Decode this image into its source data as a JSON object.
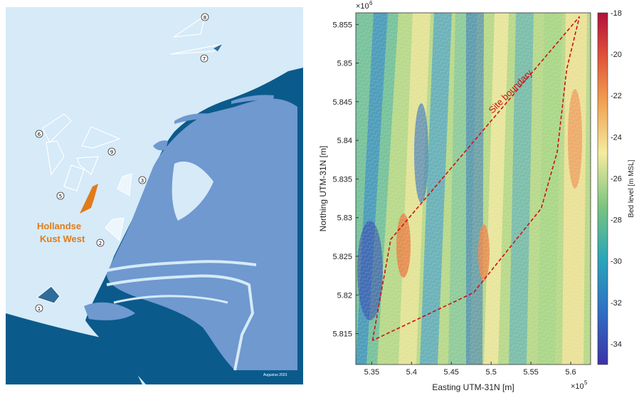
{
  "map": {
    "highlight_label_line1": "Hollandse",
    "highlight_label_line2": "Kust West",
    "date_label": "Augustus 2023",
    "wind_areas": [
      {
        "id": "1",
        "label": "1"
      },
      {
        "id": "2",
        "label": "2"
      },
      {
        "id": "3",
        "label": "3"
      },
      {
        "id": "5",
        "label": "5"
      },
      {
        "id": "6",
        "label": "6"
      },
      {
        "id": "7",
        "label": "7"
      },
      {
        "id": "8",
        "label": "8"
      },
      {
        "id": "9",
        "label": "9"
      }
    ],
    "colors": {
      "sea": "#d6eaf8",
      "land": "#6f99cf",
      "deep": "#0b5a8c",
      "highlight": "#e07b1a"
    }
  },
  "chart_data": {
    "type": "heatmap",
    "title": "",
    "xlabel": "Easting UTM-31N [m]",
    "ylabel": "Northing UTM-31N [m]",
    "x_multiplier": "×10",
    "x_exponent": "5",
    "y_multiplier": "×10",
    "y_exponent": "6",
    "xlim": [
      533000,
      562500
    ],
    "ylim": [
      5811000,
      5856500
    ],
    "x_ticks": [
      "5.35",
      "5.4",
      "5.45",
      "5.5",
      "5.55",
      "5.6"
    ],
    "x_tick_values": [
      535000,
      540000,
      545000,
      550000,
      555000,
      560000
    ],
    "y_ticks": [
      "5.855",
      "5.85",
      "5.845",
      "5.84",
      "5.835",
      "5.83",
      "5.825",
      "5.82",
      "5.815"
    ],
    "y_tick_values": [
      5855000,
      5850000,
      5845000,
      5840000,
      5835000,
      5830000,
      5825000,
      5820000,
      5815000
    ],
    "colorbar": {
      "label": "Bed level [m MSL]",
      "range": [
        -35,
        -18
      ],
      "ticks": [
        "-18",
        "-20",
        "-22",
        "-24",
        "-26",
        "-28",
        "-30",
        "-32",
        "-34"
      ],
      "tick_values": [
        -18,
        -20,
        -22,
        -24,
        -26,
        -28,
        -30,
        -32,
        -34
      ],
      "colormap": "parula-jet-like"
    },
    "annotation": "Site boundary",
    "boundary_polygon": [
      [
        535100,
        5814100
      ],
      [
        537400,
        5827200
      ],
      [
        561100,
        5856000
      ],
      [
        559500,
        5849200
      ],
      [
        558300,
        5838500
      ],
      [
        556300,
        5831200
      ],
      [
        547800,
        5820300
      ],
      [
        535100,
        5814100
      ]
    ],
    "grid": false
  }
}
